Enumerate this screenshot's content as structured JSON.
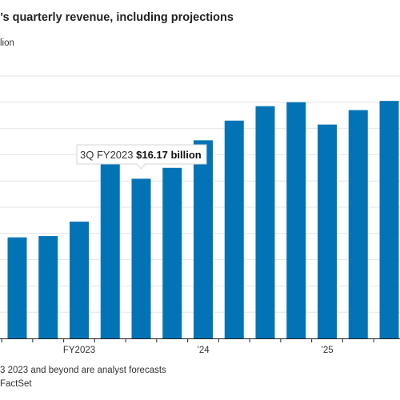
{
  "title": "’s quarterly revenue, including projections",
  "unit_label": "lion",
  "footnote": "3 2023 and beyond are analyst forecasts",
  "source": "FactSet",
  "colors": {
    "bar": "#0274b6",
    "grid": "#e4e4e4",
    "axis": "#222222"
  },
  "chart_data": {
    "type": "bar",
    "title": "’s quarterly revenue, including projections",
    "xlabel": "",
    "ylabel": "",
    "x_tick_labels": [
      {
        "label": "FY2023",
        "bar_index": 2
      },
      {
        "label": "’24",
        "bar_index": 6
      },
      {
        "label": "’25",
        "bar_index": 10
      }
    ],
    "values": [
      11.7,
      11.8,
      12.9,
      18.0,
      16.17,
      17.0,
      19.1,
      20.6,
      21.7,
      22.0,
      20.3,
      21.4,
      22.1
    ],
    "ylim": [
      4,
      24
    ],
    "grid": true,
    "annotation": {
      "bar_index": 4,
      "prefix": "3Q FY2023 ",
      "value_text": "$16.17 billion"
    }
  }
}
